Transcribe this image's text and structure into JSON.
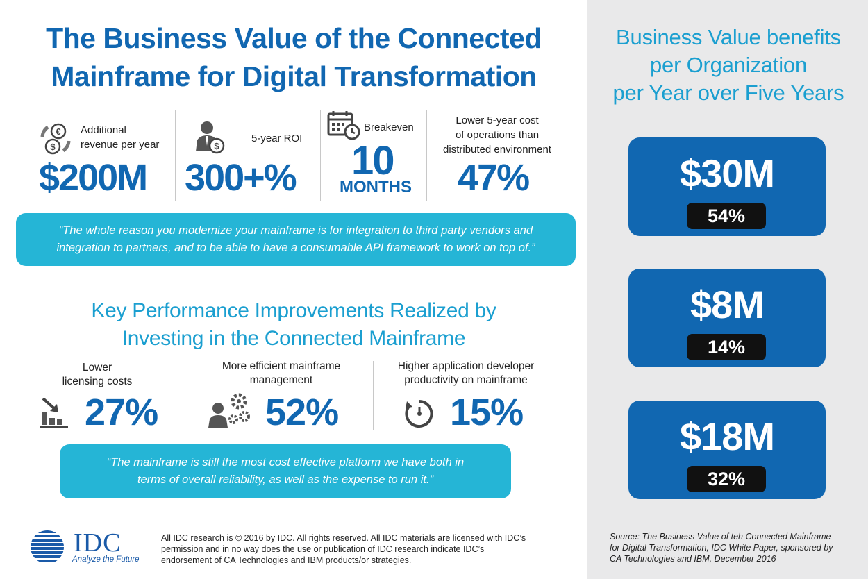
{
  "title_line1": "The Business Value of the Connected",
  "title_line2": "Mainframe for Digital Transformation",
  "stats": [
    {
      "label_line1": "Additional",
      "label_line2": "revenue per year",
      "value": "$200M",
      "icon": "euro-dollar-cycle-icon"
    },
    {
      "label_line1": "5-year ROI",
      "value": "300+%",
      "icon": "businessman-dollar-icon"
    },
    {
      "label_line1": "Breakeven",
      "value": "10",
      "unit": "MONTHS",
      "icon": "calendar-clock-icon"
    },
    {
      "label_line1": "Lower 5-year cost",
      "label_line2": "of operations than",
      "label_line3": "distributed environment",
      "value": "47%"
    }
  ],
  "quote1_line1": "“The whole reason you modernize your mainframe is for integration to third party vendors and",
  "quote1_line2": "integration to partners, and to be able to have a consumable API framework to work on top of.”",
  "kpi_title_line1": "Key Performance Improvements Realized by",
  "kpi_title_line2": "Investing in the Connected Mainframe",
  "kpis": [
    {
      "label_line1": "Lower",
      "label_line2": "licensing costs",
      "value": "27%",
      "icon": "bar-chart-down-icon"
    },
    {
      "label_line1": "More efficient mainframe",
      "label_line2": "management",
      "value": "52%",
      "icon": "person-gears-icon"
    },
    {
      "label_line1": "Higher application developer",
      "label_line2": "productivity on mainframe",
      "value": "15%",
      "icon": "stopwatch-icon"
    }
  ],
  "quote2_line1": "“The mainframe is still the most cost effective platform we have both in",
  "quote2_line2": "terms of overall reliability, as well as the expense to run it.”",
  "footer": {
    "logo_text": "IDC",
    "logo_tagline": "Analyze the Future",
    "line1": "All IDC research is © 2016 by IDC. All rights reserved. All IDC materials are licensed with IDC’s",
    "line2": "permission and in no way does the use or publication of IDC research indicate IDC’s",
    "line3": "endorsement of CA Technologies and IBM products/or strategies."
  },
  "side": {
    "title_line1": "Business Value benefits",
    "title_line2": "per Organization",
    "title_line3": "per Year over Five Years",
    "cards": [
      {
        "amount": "$30M",
        "percent": "54%"
      },
      {
        "amount": "$8M",
        "percent": "14%"
      },
      {
        "amount": "$18M",
        "percent": "32%"
      }
    ],
    "source_line1": "Source: The Business Value of teh Connected Mainframe",
    "source_line2": "for Digital Transformation, IDC White Paper, sponsored by",
    "source_line3": "CA Technologies and IBM, December 2016"
  },
  "colors": {
    "primary_blue": "#1167b1",
    "light_blue": "#1b9fd0",
    "quote_cyan": "#25b5d6",
    "sidebar_gray": "#e9e9ea"
  }
}
